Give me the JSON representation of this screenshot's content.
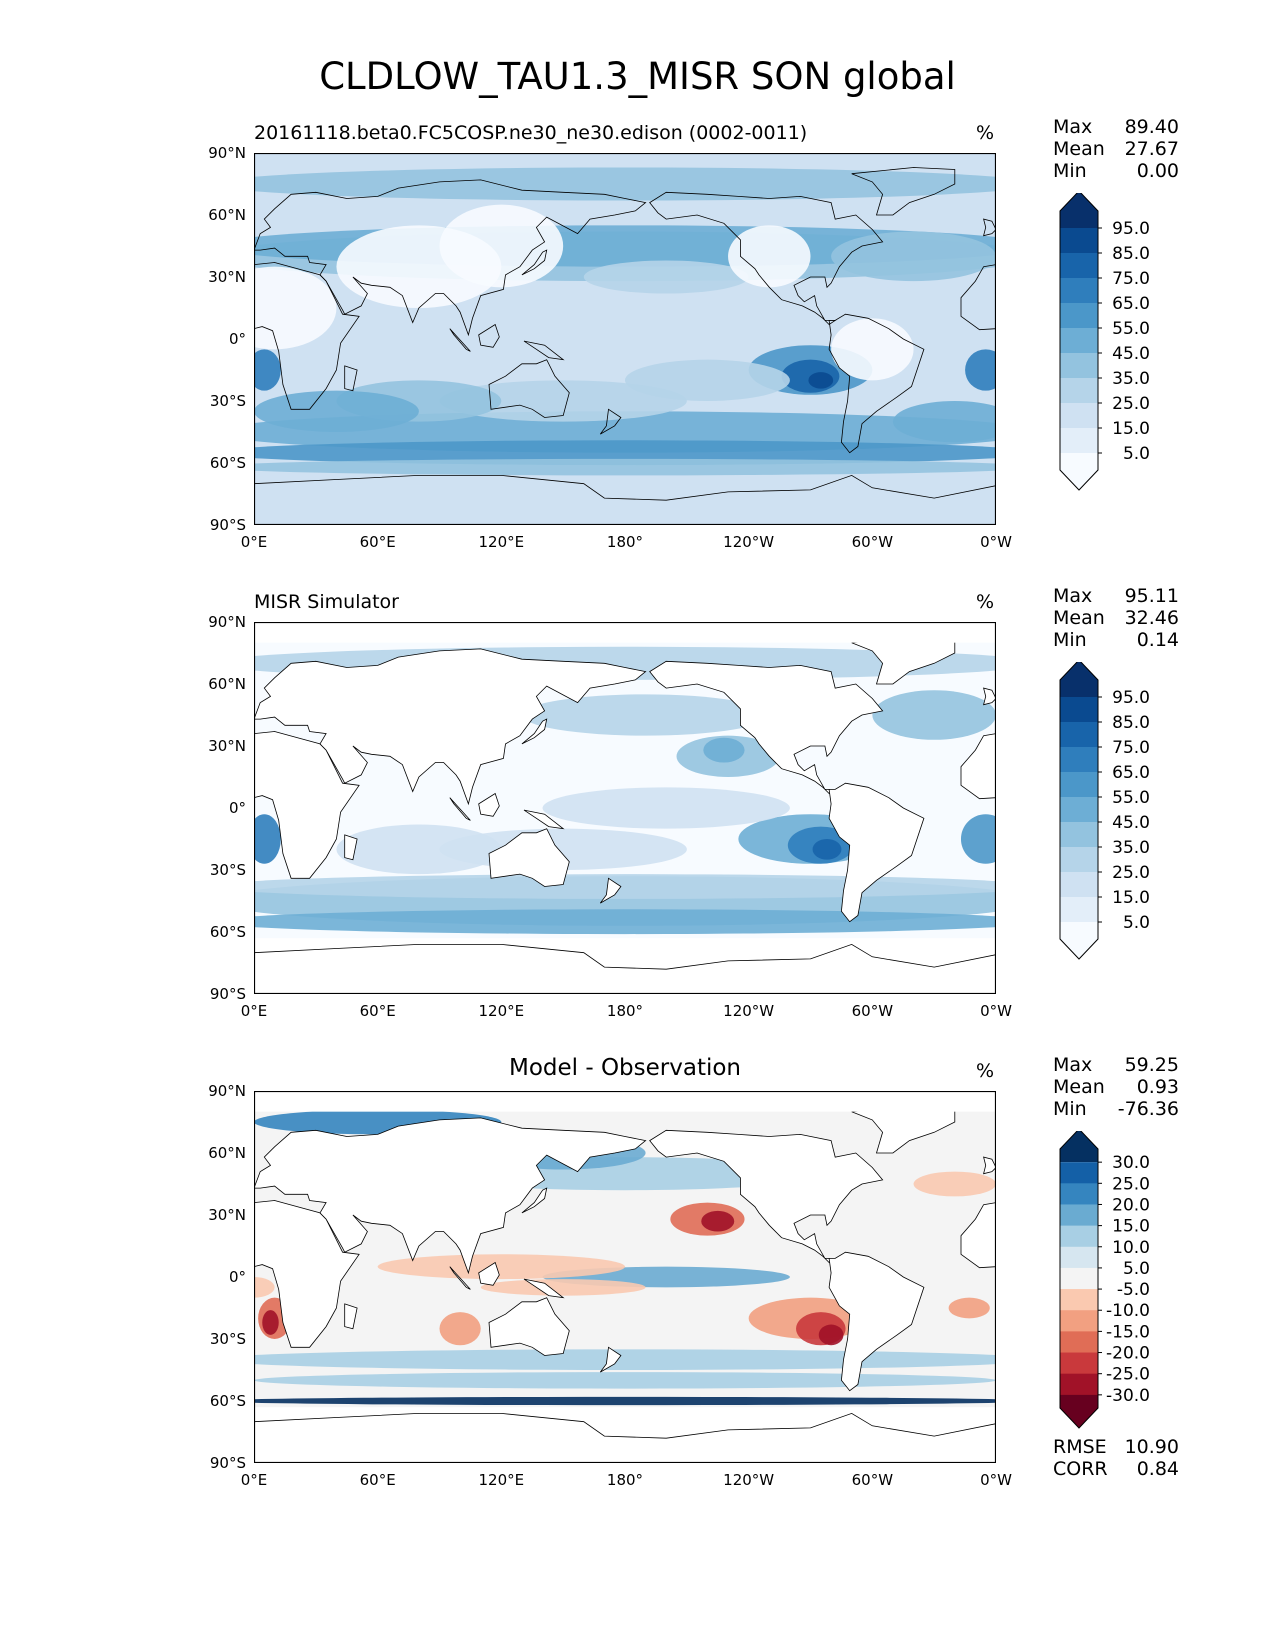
{
  "title": "CLDLOW_TAU1.3_MISR SON global",
  "units": "%",
  "lat_ticks": [
    "90°N",
    "60°N",
    "30°N",
    "0°",
    "30°S",
    "60°S",
    "90°S"
  ],
  "lon_ticks": [
    "0°E",
    "60°E",
    "120°E",
    "180°",
    "120°W",
    "60°W",
    "0°W"
  ],
  "panels": [
    {
      "id": "model",
      "title": "20161118.beta0.FC5COSP.ne30_ne30.edison (0002-0011)",
      "units": "%",
      "stats": {
        "max_label": "Max",
        "max": "89.40",
        "mean_label": "Mean",
        "mean": "27.67",
        "min_label": "Min",
        "min": "0.00"
      },
      "colorbar_labels": [
        "95.0",
        "85.0",
        "75.0",
        "65.0",
        "55.0",
        "45.0",
        "35.0",
        "25.0",
        "15.0",
        "5.0"
      ]
    },
    {
      "id": "obs",
      "title": "MISR Simulator",
      "units": "%",
      "stats": {
        "max_label": "Max",
        "max": "95.11",
        "mean_label": "Mean",
        "mean": "32.46",
        "min_label": "Min",
        "min": "0.14"
      },
      "colorbar_labels": [
        "95.0",
        "85.0",
        "75.0",
        "65.0",
        "55.0",
        "45.0",
        "35.0",
        "25.0",
        "15.0",
        "5.0"
      ]
    },
    {
      "id": "diff",
      "title": "Model - Observation",
      "units": "%",
      "stats": {
        "max_label": "Max",
        "max": "59.25",
        "mean_label": "Mean",
        "mean": "0.93",
        "min_label": "Min",
        "min": "-76.36"
      },
      "colorbar_labels": [
        "30.0",
        "25.0",
        "20.0",
        "15.0",
        "10.0",
        "5.0",
        "-5.0",
        "-10.0",
        "-15.0",
        "-20.0",
        "-25.0",
        "-30.0"
      ],
      "metrics": {
        "rmse_label": "RMSE",
        "rmse": "10.90",
        "corr_label": "CORR",
        "corr": "0.84"
      }
    }
  ],
  "colors": {
    "sequential": [
      "#f7fbff",
      "#e3eef9",
      "#cfe1f2",
      "#b5d4e9",
      "#93c3df",
      "#6daed5",
      "#4b97c9",
      "#2f7ebc",
      "#1864aa",
      "#0a4a90",
      "#08306b"
    ],
    "diverging": [
      "#67001f",
      "#a11228",
      "#c9393c",
      "#e06d56",
      "#f2a081",
      "#fac9b0",
      "#f4f4f4",
      "#d6e6f0",
      "#a8cfe4",
      "#6aabd1",
      "#3585bf",
      "#1460a7",
      "#053061"
    ]
  }
}
